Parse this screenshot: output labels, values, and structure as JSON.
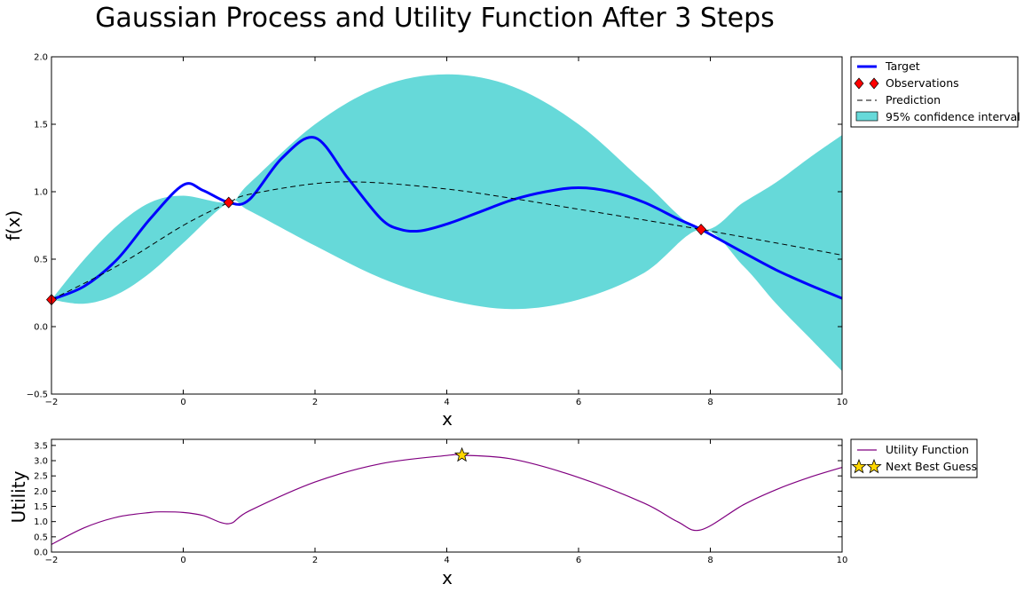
{
  "figure": {
    "title": "Gaussian Process and Utility Function After 3 Steps"
  },
  "chart_data": [
    {
      "type": "line",
      "xlabel": "x",
      "ylabel": "f(x)",
      "xlim": [
        -2,
        10
      ],
      "ylim": [
        -0.5,
        2.0
      ],
      "xticks": [
        "−2",
        "0",
        "2",
        "4",
        "6",
        "8",
        "10"
      ],
      "yticks": [
        "−0.5",
        "0.0",
        "0.5",
        "1.0",
        "1.5",
        "2.0"
      ],
      "grid": false,
      "legend_position": "outside-top-right",
      "legend": [
        "Target",
        "Observations",
        "Prediction",
        "95% confidence interval"
      ],
      "colors": {
        "target": "#0000ff",
        "observations": "#ff0000",
        "prediction": "#000000",
        "confidence": "#66d9d9"
      },
      "series": [
        {
          "name": "Target",
          "style": "solid",
          "x": [
            -2,
            -1.5,
            -1,
            -0.5,
            0,
            0.3,
            0.69,
            1,
            1.5,
            2,
            2.5,
            3,
            3.3,
            3.6,
            4,
            4.5,
            5,
            5.5,
            6,
            6.5,
            7,
            7.5,
            7.86,
            8.5,
            9,
            9.5,
            10
          ],
          "y": [
            0.2,
            0.3,
            0.5,
            0.8,
            1.05,
            1.01,
            0.92,
            0.94,
            1.25,
            1.4,
            1.1,
            0.8,
            0.72,
            0.71,
            0.76,
            0.85,
            0.94,
            1.0,
            1.03,
            1.0,
            0.92,
            0.8,
            0.72,
            0.55,
            0.42,
            0.31,
            0.21
          ]
        },
        {
          "name": "Observations",
          "style": "marker",
          "x": [
            -2.0,
            0.69,
            7.86
          ],
          "y": [
            0.2,
            0.92,
            0.72
          ]
        },
        {
          "name": "Prediction",
          "style": "dashed",
          "x": [
            -2,
            -1,
            0,
            0.69,
            1,
            2,
            2.8,
            4,
            5,
            6,
            7,
            7.86,
            9,
            10
          ],
          "y": [
            0.2,
            0.45,
            0.75,
            0.92,
            0.98,
            1.06,
            1.07,
            1.02,
            0.95,
            0.87,
            0.79,
            0.72,
            0.62,
            0.53
          ]
        },
        {
          "name": "95% confidence interval",
          "style": "band",
          "x": [
            -2,
            -1.5,
            -1,
            -0.5,
            0,
            0.69,
            1,
            2,
            3,
            4,
            5,
            6,
            7,
            7.86,
            8.5,
            9,
            9.5,
            10
          ],
          "lower": [
            0.2,
            0.17,
            0.24,
            0.4,
            0.62,
            0.92,
            0.86,
            0.6,
            0.36,
            0.2,
            0.13,
            0.2,
            0.4,
            0.72,
            0.45,
            0.17,
            -0.08,
            -0.33
          ],
          "upper": [
            0.2,
            0.5,
            0.75,
            0.92,
            0.97,
            0.92,
            1.06,
            1.5,
            1.78,
            1.87,
            1.78,
            1.5,
            1.07,
            0.72,
            0.92,
            1.07,
            1.25,
            1.42
          ]
        }
      ]
    },
    {
      "type": "line",
      "xlabel": "x",
      "ylabel": "Utility",
      "xlim": [
        -2,
        10
      ],
      "ylim": [
        0,
        3.7
      ],
      "xticks": [
        "−2",
        "0",
        "2",
        "4",
        "6",
        "8",
        "10"
      ],
      "yticks": [
        "0.0",
        "0.5",
        "1.0",
        "1.5",
        "2.0",
        "2.5",
        "3.0",
        "3.5"
      ],
      "grid": false,
      "legend_position": "outside-top-right",
      "legend": [
        "Utility Function",
        "Next Best Guess"
      ],
      "colors": {
        "utility": "#800080",
        "next_guess": "#ffd700"
      },
      "series": [
        {
          "name": "Utility Function",
          "style": "solid",
          "x": [
            -2,
            -1.5,
            -1,
            -0.5,
            -0.3,
            0,
            0.3,
            0.69,
            1,
            2,
            3,
            4,
            4.23,
            5,
            6,
            7,
            7.5,
            7.86,
            8.5,
            9,
            9.5,
            10
          ],
          "y": [
            0.25,
            0.8,
            1.15,
            1.3,
            1.32,
            1.3,
            1.2,
            0.93,
            1.35,
            2.3,
            2.9,
            3.17,
            3.18,
            3.05,
            2.45,
            1.6,
            1.0,
            0.73,
            1.55,
            2.05,
            2.45,
            2.78
          ]
        },
        {
          "name": "Next Best Guess",
          "style": "marker",
          "x": [
            4.23
          ],
          "y": [
            3.18
          ]
        }
      ]
    }
  ]
}
